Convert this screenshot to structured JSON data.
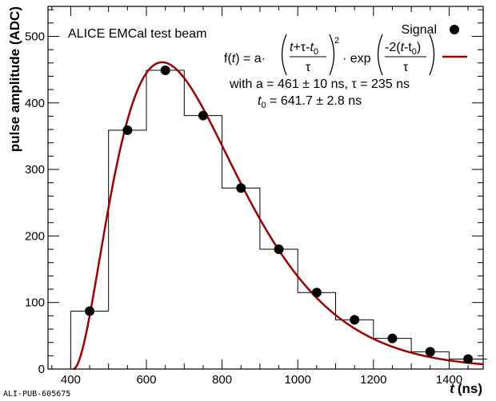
{
  "pub_id": "ALI-PUB-605675",
  "colors": {
    "fit": "#a00000",
    "hist": "#000000",
    "marker": "#000000",
    "background": "#ffffff"
  },
  "annotation": {
    "title": "ALICE EMCal test beam",
    "formula_prefix": "f(",
    "formula_var": "t",
    "formula_mid": ") = a·",
    "frac1_num_a": "t",
    "frac1_num_b": "+τ-",
    "frac1_num_c": "t",
    "frac1_num_sub": "0",
    "frac1_den": "τ",
    "frac1_power": "2",
    "formula_exp": "· exp",
    "frac2_num_a": "-2(",
    "frac2_num_b": "t",
    "frac2_num_c": "-t",
    "frac2_num_sub": "0",
    "frac2_num_d": ")",
    "frac2_den": "τ",
    "params_line1": "with a = 461 ± 10 ns, τ = 235 ns",
    "params_line2_var": "t",
    "params_line2_sub": "0",
    "params_line2_rest": " = 641.7 ± 2.8 ns"
  },
  "chart_data": {
    "type": "scatter",
    "title": "",
    "xlabel_var": "t",
    "xlabel_unit": "(ns)",
    "ylabel": "pulse amplitude (ADC)",
    "xlim": [
      340,
      1490
    ],
    "ylim": [
      0,
      545
    ],
    "x_ticks": [
      400,
      600,
      800,
      1000,
      1200,
      1400
    ],
    "y_ticks": [
      0,
      100,
      200,
      300,
      400,
      500
    ],
    "grid": false,
    "legend": {
      "position": "top-right",
      "entries": [
        {
          "label": "Signal",
          "type": "marker"
        },
        {
          "label": "f(t)",
          "type": "line"
        }
      ]
    },
    "signal_points": {
      "name": "Signal",
      "x": [
        450,
        550,
        650,
        750,
        850,
        950,
        1050,
        1150,
        1250,
        1350,
        1450
      ],
      "y": [
        87,
        359,
        449,
        381,
        272,
        180,
        115,
        74,
        46,
        26,
        15
      ]
    },
    "histogram": {
      "bin_edges": [
        400,
        500,
        600,
        700,
        800,
        900,
        1000,
        1100,
        1200,
        1300,
        1400,
        1500
      ],
      "values": [
        87,
        359,
        449,
        381,
        272,
        180,
        115,
        74,
        46,
        26,
        15
      ]
    },
    "fit": {
      "name": "f(t)",
      "a": 461,
      "a_err": 10,
      "tau": 235,
      "t0": 641.7,
      "t0_err": 2.8
    }
  }
}
